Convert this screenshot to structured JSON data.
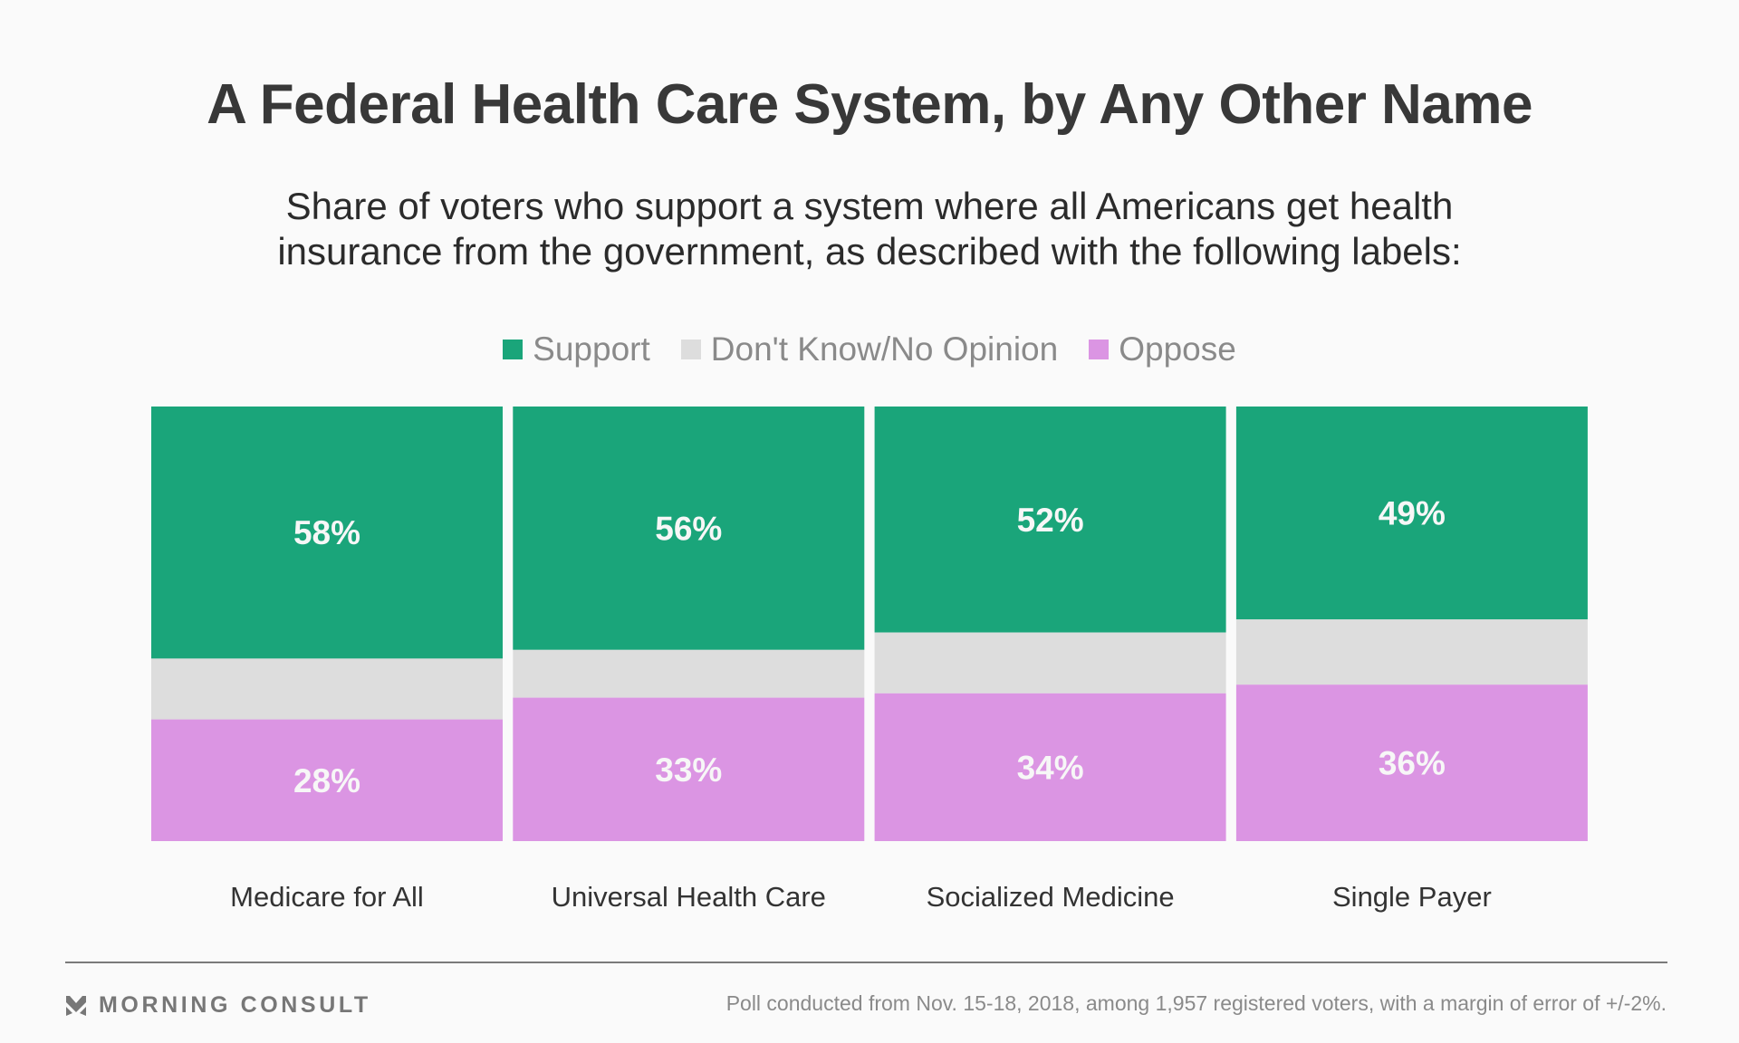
{
  "header": {
    "title": "A Federal Health Care System, by Any Other Name",
    "subtitle_lines": [
      "Share of voters who support a system where all Americans get health",
      "insurance from the government, as described with the following labels:"
    ]
  },
  "legend": [
    {
      "label": "Support",
      "color": "#1aa57a"
    },
    {
      "label": "Don't Know/No Opinion",
      "color": "#dddddd"
    },
    {
      "label": "Oppose",
      "color": "#db95e3"
    }
  ],
  "chart_data": {
    "type": "bar",
    "stacked": true,
    "orientation": "vertical",
    "title": "A Federal Health Care System, by Any Other Name",
    "subtitle": "Share of voters who support a system where all Americans get health insurance from the government, as described with the following labels:",
    "xlabel": "",
    "ylabel": "",
    "ylim": [
      0,
      100
    ],
    "grid": false,
    "legend_position": "top-center",
    "categories": [
      "Medicare for All",
      "Universal Health Care",
      "Socialized Medicine",
      "Single Payer"
    ],
    "series": [
      {
        "name": "Support",
        "color": "#1aa57a",
        "values": [
          58,
          56,
          52,
          49
        ],
        "labels": [
          "58%",
          "56%",
          "52%",
          "49%"
        ]
      },
      {
        "name": "Don't Know/No Opinion",
        "color": "#dddddd",
        "values": [
          14,
          11,
          14,
          15
        ],
        "labels": [
          "",
          "",
          "",
          ""
        ]
      },
      {
        "name": "Oppose",
        "color": "#db95e3",
        "values": [
          28,
          33,
          34,
          36
        ],
        "labels": [
          "28%",
          "33%",
          "34%",
          "36%"
        ]
      }
    ]
  },
  "footer": {
    "brand": "MORNING CONSULT",
    "note": "Poll conducted from Nov. 15-18, 2018, among 1,957 registered voters, with a margin of error of +/-2%."
  }
}
